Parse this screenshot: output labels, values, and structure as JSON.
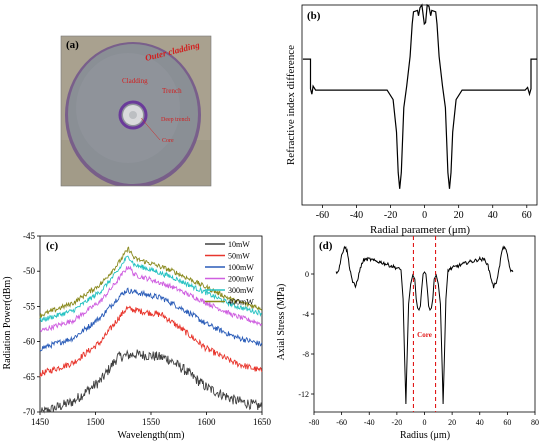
{
  "figure": {
    "panel_a": {
      "label": "(a)",
      "annotations": [
        "Outer cladding",
        "Cladding",
        "Trench",
        "Deep trench",
        "Core"
      ],
      "colors": {
        "photo_bg": "#a9a18f",
        "fiber": "#8a8f95",
        "rim": "#6a4a8a",
        "ring": "#6a3a9a",
        "text": "#d21e1e"
      }
    }
  },
  "chart_data": [
    {
      "id": "b",
      "panel_label": "(b)",
      "type": "line",
      "title": "",
      "xlabel": "Radial parameter (μm)",
      "ylabel": "Refractive index difference",
      "xlim": [
        -72,
        66
      ],
      "ylim": [
        -5.2,
        2.2
      ],
      "xticks": [
        -60,
        -40,
        -20,
        0,
        20,
        40,
        60
      ],
      "xtick_labels": [
        "-60",
        "-40",
        "-20",
        "0",
        "20",
        "40",
        "60"
      ],
      "yticks_shown": false,
      "grid": false,
      "series": [
        {
          "color": "#000000",
          "points": [
            [
              -71.5,
              0.2
            ],
            [
              -67,
              0.2
            ],
            [
              -67,
              -0.9
            ],
            [
              -66.2,
              -1.1
            ],
            [
              -65.5,
              -0.8
            ],
            [
              -64,
              -0.95
            ],
            [
              -50,
              -0.95
            ],
            [
              -30,
              -0.95
            ],
            [
              -22,
              -0.95
            ],
            [
              -18.5,
              -1.3
            ],
            [
              -16.5,
              -2.5
            ],
            [
              -15.5,
              -4.0
            ],
            [
              -14.6,
              -4.6
            ],
            [
              -13.7,
              -4.0
            ],
            [
              -12.2,
              -1.6
            ],
            [
              -10.5,
              -0.8
            ],
            [
              -8.5,
              0.3
            ],
            [
              -7.3,
              1.5
            ],
            [
              -6.5,
              1.95
            ],
            [
              -4.2,
              2.0
            ],
            [
              -3.6,
              1.8
            ],
            [
              -2.7,
              2.1
            ],
            [
              -1.6,
              2.2
            ],
            [
              -0.2,
              1.5
            ],
            [
              0.6,
              1.55
            ],
            [
              1.5,
              2.2
            ],
            [
              2.6,
              2.15
            ],
            [
              3.6,
              1.8
            ],
            [
              4.2,
              2.0
            ],
            [
              6.5,
              1.95
            ],
            [
              7.3,
              1.5
            ],
            [
              8.5,
              0.3
            ],
            [
              10.5,
              -0.8
            ],
            [
              12.2,
              -1.6
            ],
            [
              13.7,
              -4.0
            ],
            [
              14.6,
              -4.6
            ],
            [
              15.5,
              -4.0
            ],
            [
              16.5,
              -2.5
            ],
            [
              18.5,
              -1.3
            ],
            [
              22,
              -0.95
            ],
            [
              30,
              -0.95
            ],
            [
              50,
              -0.95
            ],
            [
              59,
              -0.95
            ],
            [
              60.5,
              -0.85
            ],
            [
              61.6,
              -1.1
            ],
            [
              62.5,
              -0.9
            ],
            [
              62.5,
              0.2
            ],
            [
              66,
              0.2
            ]
          ]
        }
      ]
    },
    {
      "id": "c",
      "panel_label": "(c)",
      "type": "line",
      "title": "",
      "xlabel": "Wavelength(nm)",
      "ylabel": "Radiation Power(dBm)",
      "xlim": [
        1450,
        1650
      ],
      "ylim": [
        -70,
        -45
      ],
      "xticks": [
        1450,
        1500,
        1550,
        1600,
        1650
      ],
      "yticks": [
        -70,
        -65,
        -60,
        -55,
        -50,
        -45
      ],
      "grid": false,
      "legend_position": "top-right",
      "series": [
        {
          "name": "10mW",
          "color": "#404040",
          "noise": 0.75,
          "points": [
            [
              1450,
              -70.2
            ],
            [
              1480,
              -68.5
            ],
            [
              1505,
              -65.5
            ],
            [
              1520,
              -62.2
            ],
            [
              1535,
              -61.8
            ],
            [
              1550,
              -62.0
            ],
            [
              1565,
              -62.4
            ],
            [
              1580,
              -64.0
            ],
            [
              1600,
              -66.5
            ],
            [
              1625,
              -68.3
            ],
            [
              1650,
              -69.3
            ]
          ]
        },
        {
          "name": "50mW",
          "color": "#e8362d",
          "noise": 0.45,
          "points": [
            [
              1450,
              -64.6
            ],
            [
              1480,
              -63.0
            ],
            [
              1505,
              -60.0
            ],
            [
              1520,
              -56.8
            ],
            [
              1528,
              -55.3
            ],
            [
              1545,
              -55.8
            ],
            [
              1560,
              -56.2
            ],
            [
              1580,
              -58.5
            ],
            [
              1600,
              -61.0
            ],
            [
              1625,
              -63.0
            ],
            [
              1650,
              -64.2
            ]
          ]
        },
        {
          "name": "100mW",
          "color": "#2a5cb8",
          "noise": 0.4,
          "points": [
            [
              1450,
              -61.0
            ],
            [
              1480,
              -59.5
            ],
            [
              1505,
              -56.5
            ],
            [
              1520,
              -53.8
            ],
            [
              1528,
              -52.7
            ],
            [
              1545,
              -53.3
            ],
            [
              1560,
              -53.8
            ],
            [
              1580,
              -55.5
            ],
            [
              1600,
              -57.5
            ],
            [
              1625,
              -59.3
            ],
            [
              1650,
              -60.4
            ]
          ]
        },
        {
          "name": "200mW",
          "color": "#cf5fe0",
          "noise": 0.35,
          "points": [
            [
              1450,
              -58.5
            ],
            [
              1480,
              -57.0
            ],
            [
              1505,
              -54.2
            ],
            [
              1520,
              -51.3
            ],
            [
              1527,
              -49.8
            ],
            [
              1530,
              -49.3
            ],
            [
              1535,
              -50.5
            ],
            [
              1550,
              -51.2
            ],
            [
              1570,
              -52.3
            ],
            [
              1600,
              -54.5
            ],
            [
              1625,
              -56.3
            ],
            [
              1650,
              -57.5
            ]
          ]
        },
        {
          "name": "300mW",
          "color": "#25c2c2",
          "noise": 0.35,
          "points": [
            [
              1450,
              -57.0
            ],
            [
              1480,
              -55.6
            ],
            [
              1505,
              -52.8
            ],
            [
              1520,
              -50.0
            ],
            [
              1527,
              -48.3
            ],
            [
              1530,
              -47.9
            ],
            [
              1535,
              -49.1
            ],
            [
              1550,
              -49.8
            ],
            [
              1570,
              -50.9
            ],
            [
              1600,
              -53.1
            ],
            [
              1625,
              -54.9
            ],
            [
              1650,
              -56.0
            ]
          ]
        },
        {
          "name": "400mW",
          "color": "#8a8a1e",
          "noise": 0.35,
          "points": [
            [
              1450,
              -56.3
            ],
            [
              1480,
              -54.5
            ],
            [
              1505,
              -51.8
            ],
            [
              1520,
              -49.0
            ],
            [
              1527,
              -47.4
            ],
            [
              1530,
              -46.8
            ],
            [
              1535,
              -48.2
            ],
            [
              1550,
              -48.9
            ],
            [
              1570,
              -50.0
            ],
            [
              1600,
              -52.3
            ],
            [
              1625,
              -54.2
            ],
            [
              1650,
              -55.3
            ]
          ]
        }
      ]
    },
    {
      "id": "d",
      "panel_label": "(d)",
      "type": "line",
      "title": "",
      "xlabel": "Radius (μm)",
      "ylabel": "Axial Stress (MPa)",
      "xlim": [
        -80,
        80
      ],
      "ylim": [
        -13.8,
        3.8
      ],
      "xticks": [
        -80,
        -60,
        -40,
        -20,
        0,
        20,
        40,
        60,
        80
      ],
      "yticks": [
        -12,
        -8,
        -4,
        0
      ],
      "grid": false,
      "annotation": {
        "text": "Core",
        "color": "#e01818",
        "dashed_lines_x": [
          -8,
          8
        ]
      },
      "series": [
        {
          "color": "#000000",
          "points": [
            [
              -64,
              0.1
            ],
            [
              -62,
              0.5
            ],
            [
              -60,
              1.8
            ],
            [
              -58,
              2.8
            ],
            [
              -56,
              2.3
            ],
            [
              -54,
              0.5
            ],
            [
              -52,
              -0.8
            ],
            [
              -50,
              -1.3
            ],
            [
              -48,
              -0.3
            ],
            [
              -46,
              0.8
            ],
            [
              -44,
              1.4
            ],
            [
              -40,
              1.5
            ],
            [
              -36,
              1.3
            ],
            [
              -32,
              1.2
            ],
            [
              -28,
              1.0
            ],
            [
              -24,
              0.8
            ],
            [
              -20,
              0.6
            ],
            [
              -17,
              0.4
            ],
            [
              -15.5,
              -2.5
            ],
            [
              -14.5,
              -8.0
            ],
            [
              -13.5,
              -13.0
            ],
            [
              -12.5,
              -8.0
            ],
            [
              -11.5,
              -3.0
            ],
            [
              -10,
              -1.0
            ],
            [
              -8.5,
              -0.1
            ],
            [
              -7,
              -0.5
            ],
            [
              -6,
              -2.5
            ],
            [
              -5,
              -3.4
            ],
            [
              -4,
              -3.6
            ],
            [
              -3,
              -3.2
            ],
            [
              -2,
              -1.5
            ],
            [
              -1,
              0.0
            ],
            [
              0,
              0.2
            ],
            [
              1,
              0.0
            ],
            [
              2,
              -1.5
            ],
            [
              3,
              -3.2
            ],
            [
              4,
              -3.6
            ],
            [
              5,
              -3.4
            ],
            [
              6,
              -2.5
            ],
            [
              7,
              -0.5
            ],
            [
              8.5,
              -0.1
            ],
            [
              10,
              -1.0
            ],
            [
              11.5,
              -3.0
            ],
            [
              12.5,
              -8.0
            ],
            [
              13.5,
              -13.0
            ],
            [
              14.5,
              -8.0
            ],
            [
              15.5,
              -2.5
            ],
            [
              17,
              0.4
            ],
            [
              20,
              0.6
            ],
            [
              24,
              0.8
            ],
            [
              28,
              1.0
            ],
            [
              32,
              1.2
            ],
            [
              36,
              1.3
            ],
            [
              40,
              1.5
            ],
            [
              44,
              1.4
            ],
            [
              46,
              0.8
            ],
            [
              48,
              -0.3
            ],
            [
              50,
              -1.3
            ],
            [
              52,
              -0.8
            ],
            [
              54,
              0.5
            ],
            [
              56,
              2.3
            ],
            [
              58,
              2.8
            ],
            [
              60,
              1.8
            ],
            [
              62,
              0.5
            ],
            [
              64,
              0.1
            ]
          ]
        }
      ]
    }
  ]
}
